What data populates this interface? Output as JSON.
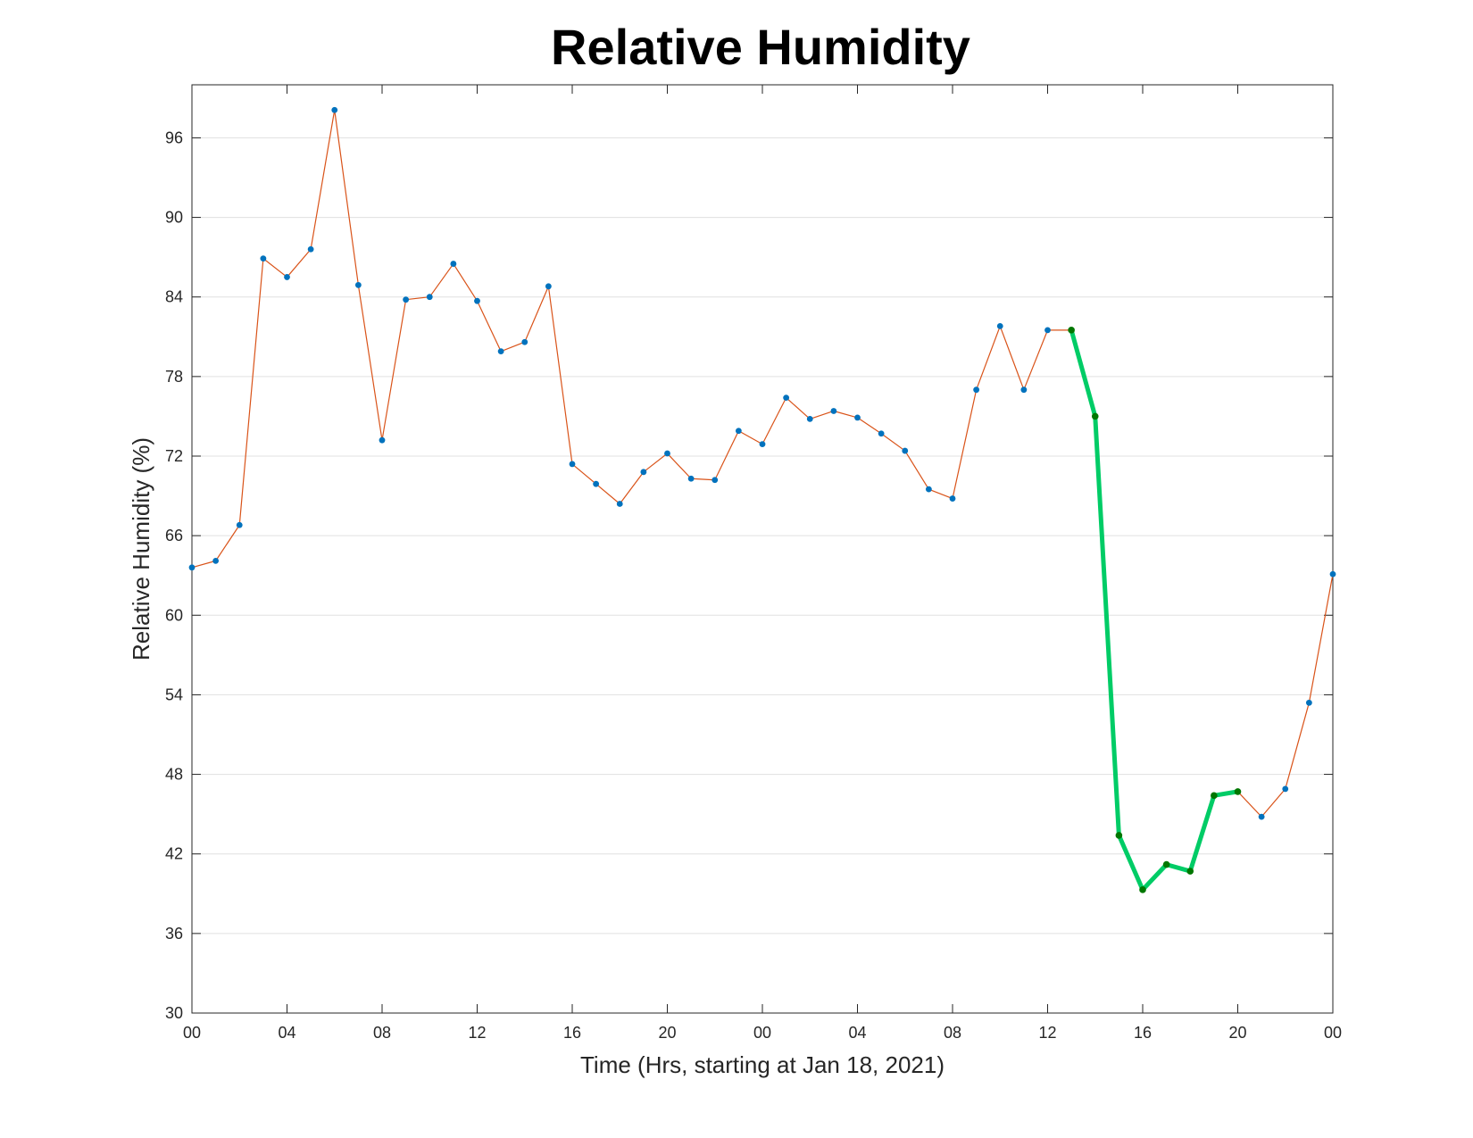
{
  "chart_data": {
    "type": "line",
    "title": "Relative Humidity",
    "xlabel": "Time (Hrs, starting at Jan 18, 2021)",
    "ylabel": "Relative Humidity (%)",
    "xlim": [
      0,
      48
    ],
    "ylim": [
      30,
      100
    ],
    "x_ticks": [
      0,
      4,
      8,
      12,
      16,
      20,
      24,
      28,
      32,
      36,
      40,
      44,
      48
    ],
    "x_tick_labels": [
      "00",
      "04",
      "08",
      "12",
      "16",
      "20",
      "00",
      "04",
      "08",
      "12",
      "16",
      "20",
      "00"
    ],
    "y_ticks": [
      30,
      36,
      42,
      48,
      54,
      60,
      66,
      72,
      78,
      84,
      90,
      96
    ],
    "grid": "horizontal",
    "legend": "none",
    "series": [
      {
        "x": [
          0,
          1,
          2,
          3,
          4,
          5,
          6,
          7,
          8,
          9,
          10,
          11,
          12,
          13,
          14,
          15,
          16,
          17,
          18,
          19,
          20,
          21,
          22,
          23,
          24,
          25,
          26,
          27,
          28,
          29,
          30,
          31,
          32,
          33,
          34,
          35,
          36,
          37,
          38,
          39,
          40,
          41,
          42,
          43,
          44,
          45,
          46,
          47,
          48
        ],
        "values": [
          63.6,
          64.1,
          66.8,
          86.9,
          85.5,
          87.6,
          98.1,
          84.9,
          73.2,
          83.8,
          84.0,
          86.5,
          83.7,
          79.9,
          80.6,
          84.8,
          71.4,
          69.9,
          68.4,
          70.8,
          72.2,
          70.3,
          70.2,
          73.9,
          72.9,
          76.4,
          74.8,
          75.4,
          74.9,
          73.7,
          72.4,
          69.5,
          68.8,
          77.0,
          81.8,
          77.0,
          81.5,
          81.5,
          75.0,
          43.4,
          39.3,
          41.2,
          40.7,
          46.4,
          46.7,
          44.8,
          46.9,
          53.4,
          63.1
        ],
        "line_color": "#D95319",
        "marker_color": "#0072BD"
      },
      {
        "x": [
          37,
          38,
          39,
          40,
          41,
          42,
          43,
          44
        ],
        "values": [
          81.5,
          75.0,
          43.4,
          39.3,
          41.2,
          40.7,
          46.4,
          46.7
        ],
        "line_color": "#00CC66",
        "marker_color": "#007700"
      }
    ]
  }
}
